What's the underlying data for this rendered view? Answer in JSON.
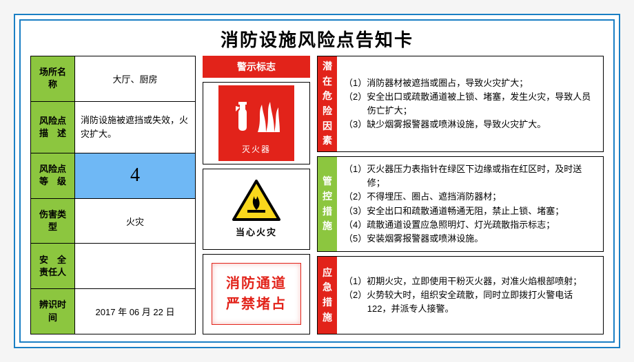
{
  "title": "消防设施风险点告知卡",
  "colors": {
    "frame": "#1a7fc4",
    "green": "#8cc63f",
    "blue": "#6fb8f5",
    "red": "#e2231a",
    "yellow": "#f9d71c",
    "black": "#000000"
  },
  "info": {
    "rows": [
      {
        "label": "场所名称",
        "value": "大厅、厨房",
        "label_bg": "#8cc63f",
        "value_type": "center"
      },
      {
        "label": "风险点\n描　述",
        "value": "消防设施被遮挡或失效，火灾扩大。",
        "label_bg": "#8cc63f",
        "value_type": "desc"
      },
      {
        "label": "风险点\n等　级",
        "value": "4",
        "label_bg": "#8cc63f",
        "value_type": "level",
        "value_bg": "#6fb8f5"
      },
      {
        "label": "伤害类型",
        "value": "火灾",
        "label_bg": "#8cc63f",
        "value_type": "center"
      },
      {
        "label": "安　全\n责任人",
        "value": "",
        "label_bg": "#8cc63f",
        "value_type": "center"
      },
      {
        "label": "辨识时间",
        "value": "2017 年 06 月 22 日",
        "label_bg": "#8cc63f",
        "value_type": "center"
      }
    ]
  },
  "signs": {
    "header": "警示标志",
    "header_bg": "#e2231a",
    "extinguisher_label": "灭火器",
    "warning_label": "当心火灾",
    "passage_line1": "消防通道",
    "passage_line2": "严禁堵占"
  },
  "sections": [
    {
      "label": "潜在危险因素",
      "bg": "#e2231a",
      "items": [
        "（1）消防器材被遮挡或圈占，导致火灾扩大；",
        "（2）安全出口或疏散通道被上锁、堵塞，发生火灾，导致人员伤亡扩大；",
        "（3）缺少烟雾报警器或喷淋设施，导致火灾扩大。"
      ]
    },
    {
      "label": "管控措施",
      "bg": "#8cc63f",
      "items": [
        "（1）灭火器压力表指针在绿区下边缘或指在红区时，及时送修；",
        "（2）不得埋压、圈占、遮挡消防器材；",
        "（3）安全出口和疏散通道畅通无阻，禁止上锁、堵塞；",
        "（4）疏散通道设置应急照明灯、灯光疏散指示标志；",
        "（5）安装烟雾报警器或喷淋设施。"
      ]
    },
    {
      "label": "应急措施",
      "bg": "#e2231a",
      "items": [
        "（1）初期火灾，立即使用干粉灭火器，对准火焰根部喷射；",
        "（2）火势较大时，组织安全疏散，同时立即拨打火警电话122，并派专人接警。"
      ]
    }
  ]
}
